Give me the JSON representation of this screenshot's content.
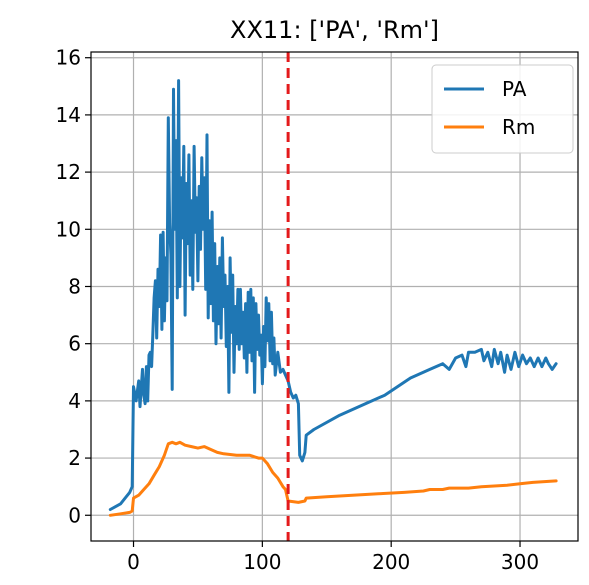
{
  "chart_data": {
    "type": "line",
    "title": "XX11: ['PA', 'Rm']",
    "xlabel": "",
    "ylabel": "",
    "xlim": [
      -33,
      345
    ],
    "ylim": [
      -0.9,
      16.2
    ],
    "xticks": [
      0,
      100,
      200,
      300
    ],
    "yticks": [
      0,
      2,
      4,
      6,
      8,
      10,
      12,
      14,
      16
    ],
    "xtick_labels": [
      "0",
      "100",
      "200",
      "300"
    ],
    "ytick_labels": [
      "0",
      "2",
      "4",
      "6",
      "8",
      "10",
      "12",
      "14",
      "16"
    ],
    "grid": true,
    "legend": {
      "placement": "top-right"
    },
    "vline": {
      "x": 120,
      "color": "#e41a1c",
      "style": "dashed"
    },
    "series": [
      {
        "name": "PA",
        "color": "#1f77b4",
        "points": [
          [
            -18,
            0.2
          ],
          [
            -10,
            0.4
          ],
          [
            -3,
            0.8
          ],
          [
            -1,
            1.0
          ],
          [
            0,
            4.5
          ],
          [
            2,
            4.0
          ],
          [
            4,
            4.7
          ],
          [
            5,
            3.8
          ],
          [
            7,
            5.1
          ],
          [
            8,
            4.2
          ],
          [
            9,
            3.9
          ],
          [
            10,
            5.2
          ],
          [
            11,
            4.0
          ],
          [
            12,
            5.6
          ],
          [
            13,
            5.7
          ],
          [
            14,
            5.2
          ],
          [
            15,
            6.3
          ],
          [
            16,
            7.6
          ],
          [
            17,
            8.2
          ],
          [
            18,
            6.2
          ],
          [
            19,
            8.6
          ],
          [
            20,
            7.3
          ],
          [
            21,
            9.8
          ],
          [
            22,
            6.5
          ],
          [
            23,
            9.9
          ],
          [
            24,
            6.8
          ],
          [
            25,
            9.0
          ],
          [
            26,
            7.5
          ],
          [
            27,
            13.9
          ],
          [
            28,
            10.2
          ],
          [
            29,
            9.1
          ],
          [
            30,
            4.4
          ],
          [
            31,
            14.9
          ],
          [
            32,
            10.0
          ],
          [
            33,
            13.1
          ],
          [
            34,
            7.6
          ],
          [
            35,
            15.2
          ],
          [
            36,
            8.0
          ],
          [
            37,
            11.8
          ],
          [
            38,
            9.7
          ],
          [
            39,
            12.9
          ],
          [
            40,
            7.0
          ],
          [
            41,
            11.6
          ],
          [
            42,
            9.5
          ],
          [
            43,
            12.6
          ],
          [
            44,
            8.4
          ],
          [
            45,
            11.0
          ],
          [
            46,
            7.9
          ],
          [
            47,
            12.9
          ],
          [
            48,
            9.9
          ],
          [
            49,
            11.1
          ],
          [
            50,
            8.2
          ],
          [
            51,
            11.5
          ],
          [
            52,
            9.3
          ],
          [
            53,
            12.5
          ],
          [
            54,
            10.0
          ],
          [
            55,
            11.8
          ],
          [
            56,
            7.9
          ],
          [
            57,
            13.3
          ],
          [
            58,
            6.9
          ],
          [
            59,
            10.3
          ],
          [
            60,
            7.4
          ],
          [
            61,
            10.6
          ],
          [
            62,
            6.8
          ],
          [
            63,
            9.5
          ],
          [
            64,
            6.0
          ],
          [
            65,
            8.7
          ],
          [
            66,
            6.7
          ],
          [
            67,
            9.0
          ],
          [
            68,
            6.2
          ],
          [
            69,
            9.7
          ],
          [
            70,
            7.3
          ],
          [
            71,
            8.4
          ],
          [
            72,
            5.9
          ],
          [
            73,
            8.0
          ],
          [
            74,
            4.3
          ],
          [
            75,
            9.0
          ],
          [
            76,
            6.4
          ],
          [
            77,
            8.4
          ],
          [
            78,
            5.0
          ],
          [
            79,
            7.3
          ],
          [
            80,
            6.0
          ],
          [
            81,
            7.9
          ],
          [
            82,
            5.8
          ],
          [
            83,
            7.9
          ],
          [
            84,
            6.0
          ],
          [
            85,
            7.1
          ],
          [
            86,
            5.5
          ],
          [
            87,
            7.4
          ],
          [
            88,
            5.0
          ],
          [
            89,
            7.8
          ],
          [
            90,
            5.7
          ],
          [
            91,
            7.9
          ],
          [
            92,
            5.4
          ],
          [
            93,
            7.6
          ],
          [
            94,
            4.3
          ],
          [
            95,
            7.4
          ],
          [
            96,
            5.8
          ],
          [
            97,
            7.0
          ],
          [
            98,
            5.6
          ],
          [
            99,
            6.3
          ],
          [
            100,
            4.6
          ],
          [
            101,
            6.6
          ],
          [
            102,
            5.2
          ],
          [
            103,
            7.6
          ],
          [
            104,
            6.1
          ],
          [
            105,
            7.4
          ],
          [
            106,
            5.4
          ],
          [
            107,
            7.1
          ],
          [
            108,
            5.3
          ],
          [
            109,
            6.2
          ],
          [
            110,
            4.9
          ],
          [
            111,
            5.3
          ],
          [
            112,
            5.7
          ],
          [
            114,
            5.0
          ],
          [
            116,
            5.1
          ],
          [
            118,
            4.9
          ],
          [
            120,
            4.7
          ],
          [
            122,
            4.3
          ],
          [
            124,
            4.1
          ],
          [
            126,
            4.2
          ],
          [
            128,
            3.9
          ],
          [
            129,
            2.1
          ],
          [
            131,
            1.9
          ],
          [
            133,
            2.2
          ],
          [
            134,
            2.8
          ],
          [
            140,
            3.0
          ],
          [
            160,
            3.5
          ],
          [
            180,
            3.9
          ],
          [
            195,
            4.2
          ],
          [
            205,
            4.5
          ],
          [
            215,
            4.8
          ],
          [
            230,
            5.1
          ],
          [
            240,
            5.3
          ],
          [
            245,
            5.1
          ],
          [
            250,
            5.5
          ],
          [
            255,
            5.6
          ],
          [
            258,
            5.2
          ],
          [
            260,
            5.7
          ],
          [
            265,
            5.7
          ],
          [
            270,
            5.8
          ],
          [
            272,
            5.4
          ],
          [
            275,
            5.7
          ],
          [
            278,
            5.2
          ],
          [
            280,
            5.8
          ],
          [
            283,
            5.3
          ],
          [
            285,
            5.7
          ],
          [
            288,
            5.0
          ],
          [
            290,
            5.6
          ],
          [
            293,
            5.1
          ],
          [
            296,
            5.7
          ],
          [
            299,
            5.2
          ],
          [
            302,
            5.6
          ],
          [
            305,
            5.3
          ],
          [
            308,
            5.5
          ],
          [
            311,
            5.2
          ],
          [
            314,
            5.5
          ],
          [
            317,
            5.2
          ],
          [
            320,
            5.5
          ],
          [
            322,
            5.3
          ],
          [
            325,
            5.1
          ],
          [
            328,
            5.3
          ]
        ]
      },
      {
        "name": "Rm",
        "color": "#ff7f0e",
        "points": [
          [
            -18,
            0.0
          ],
          [
            -10,
            0.05
          ],
          [
            -3,
            0.1
          ],
          [
            -1,
            0.15
          ],
          [
            0,
            0.6
          ],
          [
            4,
            0.7
          ],
          [
            8,
            0.9
          ],
          [
            12,
            1.1
          ],
          [
            16,
            1.4
          ],
          [
            20,
            1.7
          ],
          [
            24,
            2.1
          ],
          [
            27,
            2.5
          ],
          [
            30,
            2.55
          ],
          [
            33,
            2.5
          ],
          [
            36,
            2.55
          ],
          [
            40,
            2.45
          ],
          [
            45,
            2.4
          ],
          [
            50,
            2.35
          ],
          [
            55,
            2.4
          ],
          [
            60,
            2.3
          ],
          [
            65,
            2.2
          ],
          [
            70,
            2.15
          ],
          [
            80,
            2.1
          ],
          [
            90,
            2.1
          ],
          [
            97,
            2.0
          ],
          [
            100,
            2.0
          ],
          [
            104,
            1.8
          ],
          [
            108,
            1.5
          ],
          [
            112,
            1.3
          ],
          [
            116,
            1.0
          ],
          [
            118,
            0.9
          ],
          [
            120,
            0.5
          ],
          [
            128,
            0.45
          ],
          [
            133,
            0.5
          ],
          [
            134,
            0.6
          ],
          [
            150,
            0.65
          ],
          [
            170,
            0.7
          ],
          [
            190,
            0.75
          ],
          [
            210,
            0.8
          ],
          [
            225,
            0.85
          ],
          [
            230,
            0.9
          ],
          [
            240,
            0.9
          ],
          [
            245,
            0.95
          ],
          [
            260,
            0.95
          ],
          [
            270,
            1.0
          ],
          [
            290,
            1.05
          ],
          [
            300,
            1.1
          ],
          [
            310,
            1.15
          ],
          [
            328,
            1.2
          ]
        ]
      }
    ]
  }
}
